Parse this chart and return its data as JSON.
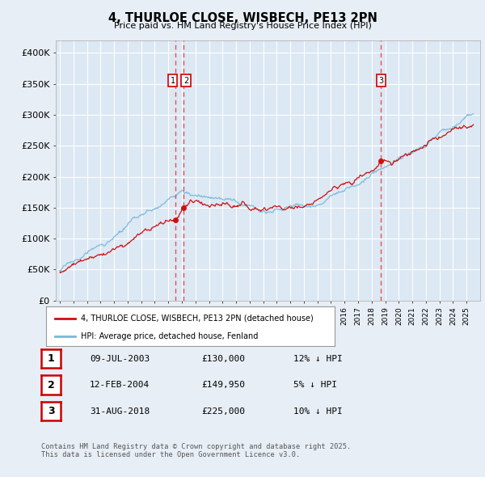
{
  "title": "4, THURLOE CLOSE, WISBECH, PE13 2PN",
  "subtitle": "Price paid vs. HM Land Registry's House Price Index (HPI)",
  "bg_color": "#e8eef5",
  "plot_bg_color": "#dce8f4",
  "grid_color": "#ffffff",
  "ylim": [
    0,
    420000
  ],
  "yticks": [
    0,
    50000,
    100000,
    150000,
    200000,
    250000,
    300000,
    350000,
    400000
  ],
  "ytick_labels": [
    "£0",
    "£50K",
    "£100K",
    "£150K",
    "£200K",
    "£250K",
    "£300K",
    "£350K",
    "£400K"
  ],
  "transactions": [
    {
      "num": 1,
      "date": "09-JUL-2003",
      "price": 130000,
      "year": 2003.52,
      "pct": "12%"
    },
    {
      "num": 2,
      "date": "12-FEB-2004",
      "price": 149950,
      "year": 2004.12,
      "pct": "5%"
    },
    {
      "num": 3,
      "date": "31-AUG-2018",
      "price": 225000,
      "year": 2018.67,
      "pct": "10%"
    }
  ],
  "legend_line1": "4, THURLOE CLOSE, WISBECH, PE13 2PN (detached house)",
  "legend_line2": "HPI: Average price, detached house, Fenland",
  "footnote1": "Contains HM Land Registry data © Crown copyright and database right 2025.",
  "footnote2": "This data is licensed under the Open Government Licence v3.0.",
  "hpi_color": "#7ab8d9",
  "price_color": "#cc1111",
  "vline_color": "#ee3333",
  "marker_color": "#cc1111",
  "label_box_color": "#ffffff",
  "label_border_color": "#cc0000",
  "table_rows": [
    {
      "num": "1",
      "date": "09-JUL-2003",
      "price": "£130,000",
      "pct": "12% ↓ HPI"
    },
    {
      "num": "2",
      "date": "12-FEB-2004",
      "price": "£149,950",
      "pct": "5% ↓ HPI"
    },
    {
      "num": "3",
      "date": "31-AUG-2018",
      "price": "£225,000",
      "pct": "10% ↓ HPI"
    }
  ]
}
